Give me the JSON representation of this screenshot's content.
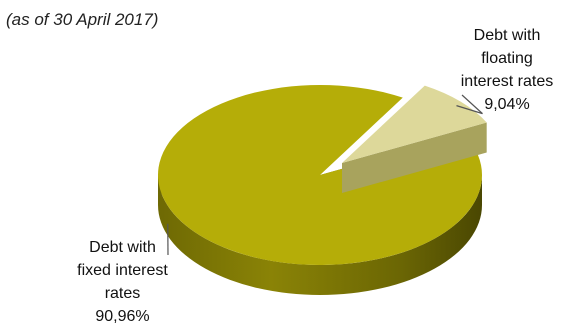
{
  "subtitle": "(as of 30 April 2017)",
  "colors": {
    "fixed_top": "#b5ad08",
    "fixed_side": "#7a7404",
    "floating_top": "#ddd89a",
    "floating_side": "#a8a35d",
    "leader": "#555555"
  },
  "chart_data": {
    "type": "pie",
    "title": "",
    "subtitle": "(as of 30 April 2017)",
    "style": "3d",
    "slices": [
      {
        "key": "fixed",
        "label_lines": [
          "Debt with",
          "fixed interest",
          "rates"
        ],
        "value_label": "90,96%",
        "value": 90.96
      },
      {
        "key": "floating",
        "label_lines": [
          "Debt with",
          "floating",
          "interest rates"
        ],
        "value_label": "9,04%",
        "value": 9.04
      }
    ],
    "legend": "none"
  }
}
